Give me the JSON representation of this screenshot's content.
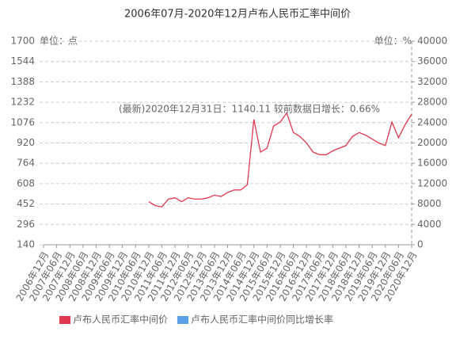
{
  "chart_data": {
    "type": "line",
    "title": "2006年07月-2020年12月卢布人民币汇率中间价",
    "y_unit": "单位：点",
    "y2_unit": "单位：%",
    "annotation": "(最新)2020年12月31日：1140.11  较前数据日增长：0.66%",
    "categories": [
      "2006年12月",
      null,
      "2007年06月",
      null,
      "2007年12月",
      null,
      "2008年06月",
      null,
      "2008年12月",
      null,
      "2009年06月",
      null,
      "2009年12月",
      null,
      "2010年06月",
      null,
      "2010年12月",
      null,
      "2011年06月",
      null,
      "2011年12月",
      null,
      "2012年06月",
      null,
      "2012年12月",
      null,
      "2013年06月",
      null,
      "2013年12月",
      null,
      "2014年06月",
      null,
      "2014年12月",
      null,
      "2015年06月",
      null,
      "2015年12月",
      null,
      "2016年06月",
      null,
      "2016年12月",
      null,
      "2017年06月",
      null,
      "2017年12月",
      null,
      "2018年06月",
      null,
      "2018年12月",
      null,
      "2019年06月",
      null,
      "2019年12月",
      null,
      "2020年06月",
      null,
      "2020年12月"
    ],
    "series": [
      {
        "name": "卢布人民币汇率中间价",
        "color": "#e0384e",
        "values": [
          null,
          null,
          null,
          null,
          null,
          null,
          null,
          null,
          null,
          null,
          null,
          null,
          null,
          null,
          null,
          null,
          470,
          440,
          430,
          490,
          500,
          470,
          500,
          490,
          490,
          500,
          520,
          510,
          540,
          560,
          560,
          600,
          1100,
          850,
          880,
          1050,
          1080,
          1150,
          1000,
          970,
          920,
          850,
          830,
          830,
          860,
          880,
          900,
          970,
          1000,
          980,
          950,
          920,
          900,
          1080,
          960,
          1060,
          1140.11
        ]
      },
      {
        "name": "卢布人民币汇率中间价同比增长率",
        "color": "#5aa0e6",
        "axis": "y2",
        "values": [
          null,
          null,
          null,
          null,
          null,
          null,
          null,
          null,
          null,
          null,
          null,
          null,
          null,
          null,
          null,
          null,
          null,
          null,
          null,
          null,
          null,
          null,
          null,
          null,
          null,
          null,
          null,
          null,
          null,
          null,
          null,
          null,
          null,
          null,
          null,
          null,
          null,
          null,
          null,
          null,
          null,
          null,
          null,
          null,
          null,
          null,
          null,
          null,
          null,
          null,
          null,
          null,
          null,
          null,
          null,
          null,
          null
        ]
      }
    ],
    "ylim": [
      140,
      1700
    ],
    "yticks": [
      140,
      296,
      452,
      608,
      764,
      920,
      1076,
      1232,
      1388,
      1544,
      1700
    ],
    "y2lim": [
      0,
      40000
    ],
    "y2ticks": [
      0,
      4000,
      8000,
      12000,
      16000,
      20000,
      24000,
      28000,
      32000,
      36000,
      40000
    ],
    "grid": true
  }
}
